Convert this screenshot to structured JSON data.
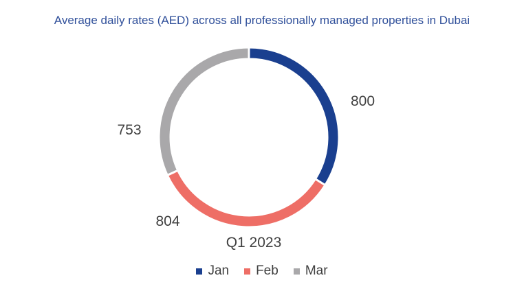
{
  "chart_data": {
    "type": "pie",
    "variant": "donut",
    "title": "Average daily rates (AED) across all professionally managed properties in Dubai",
    "category_label": "Q1 2023",
    "categories": [
      "Jan",
      "Feb",
      "Mar"
    ],
    "values": [
      800,
      804,
      753
    ],
    "colors": [
      "#1a3f8f",
      "#ee6e66",
      "#a9a8aa"
    ],
    "legend_position": "bottom",
    "data_labels": [
      "800",
      "804",
      "753"
    ]
  }
}
